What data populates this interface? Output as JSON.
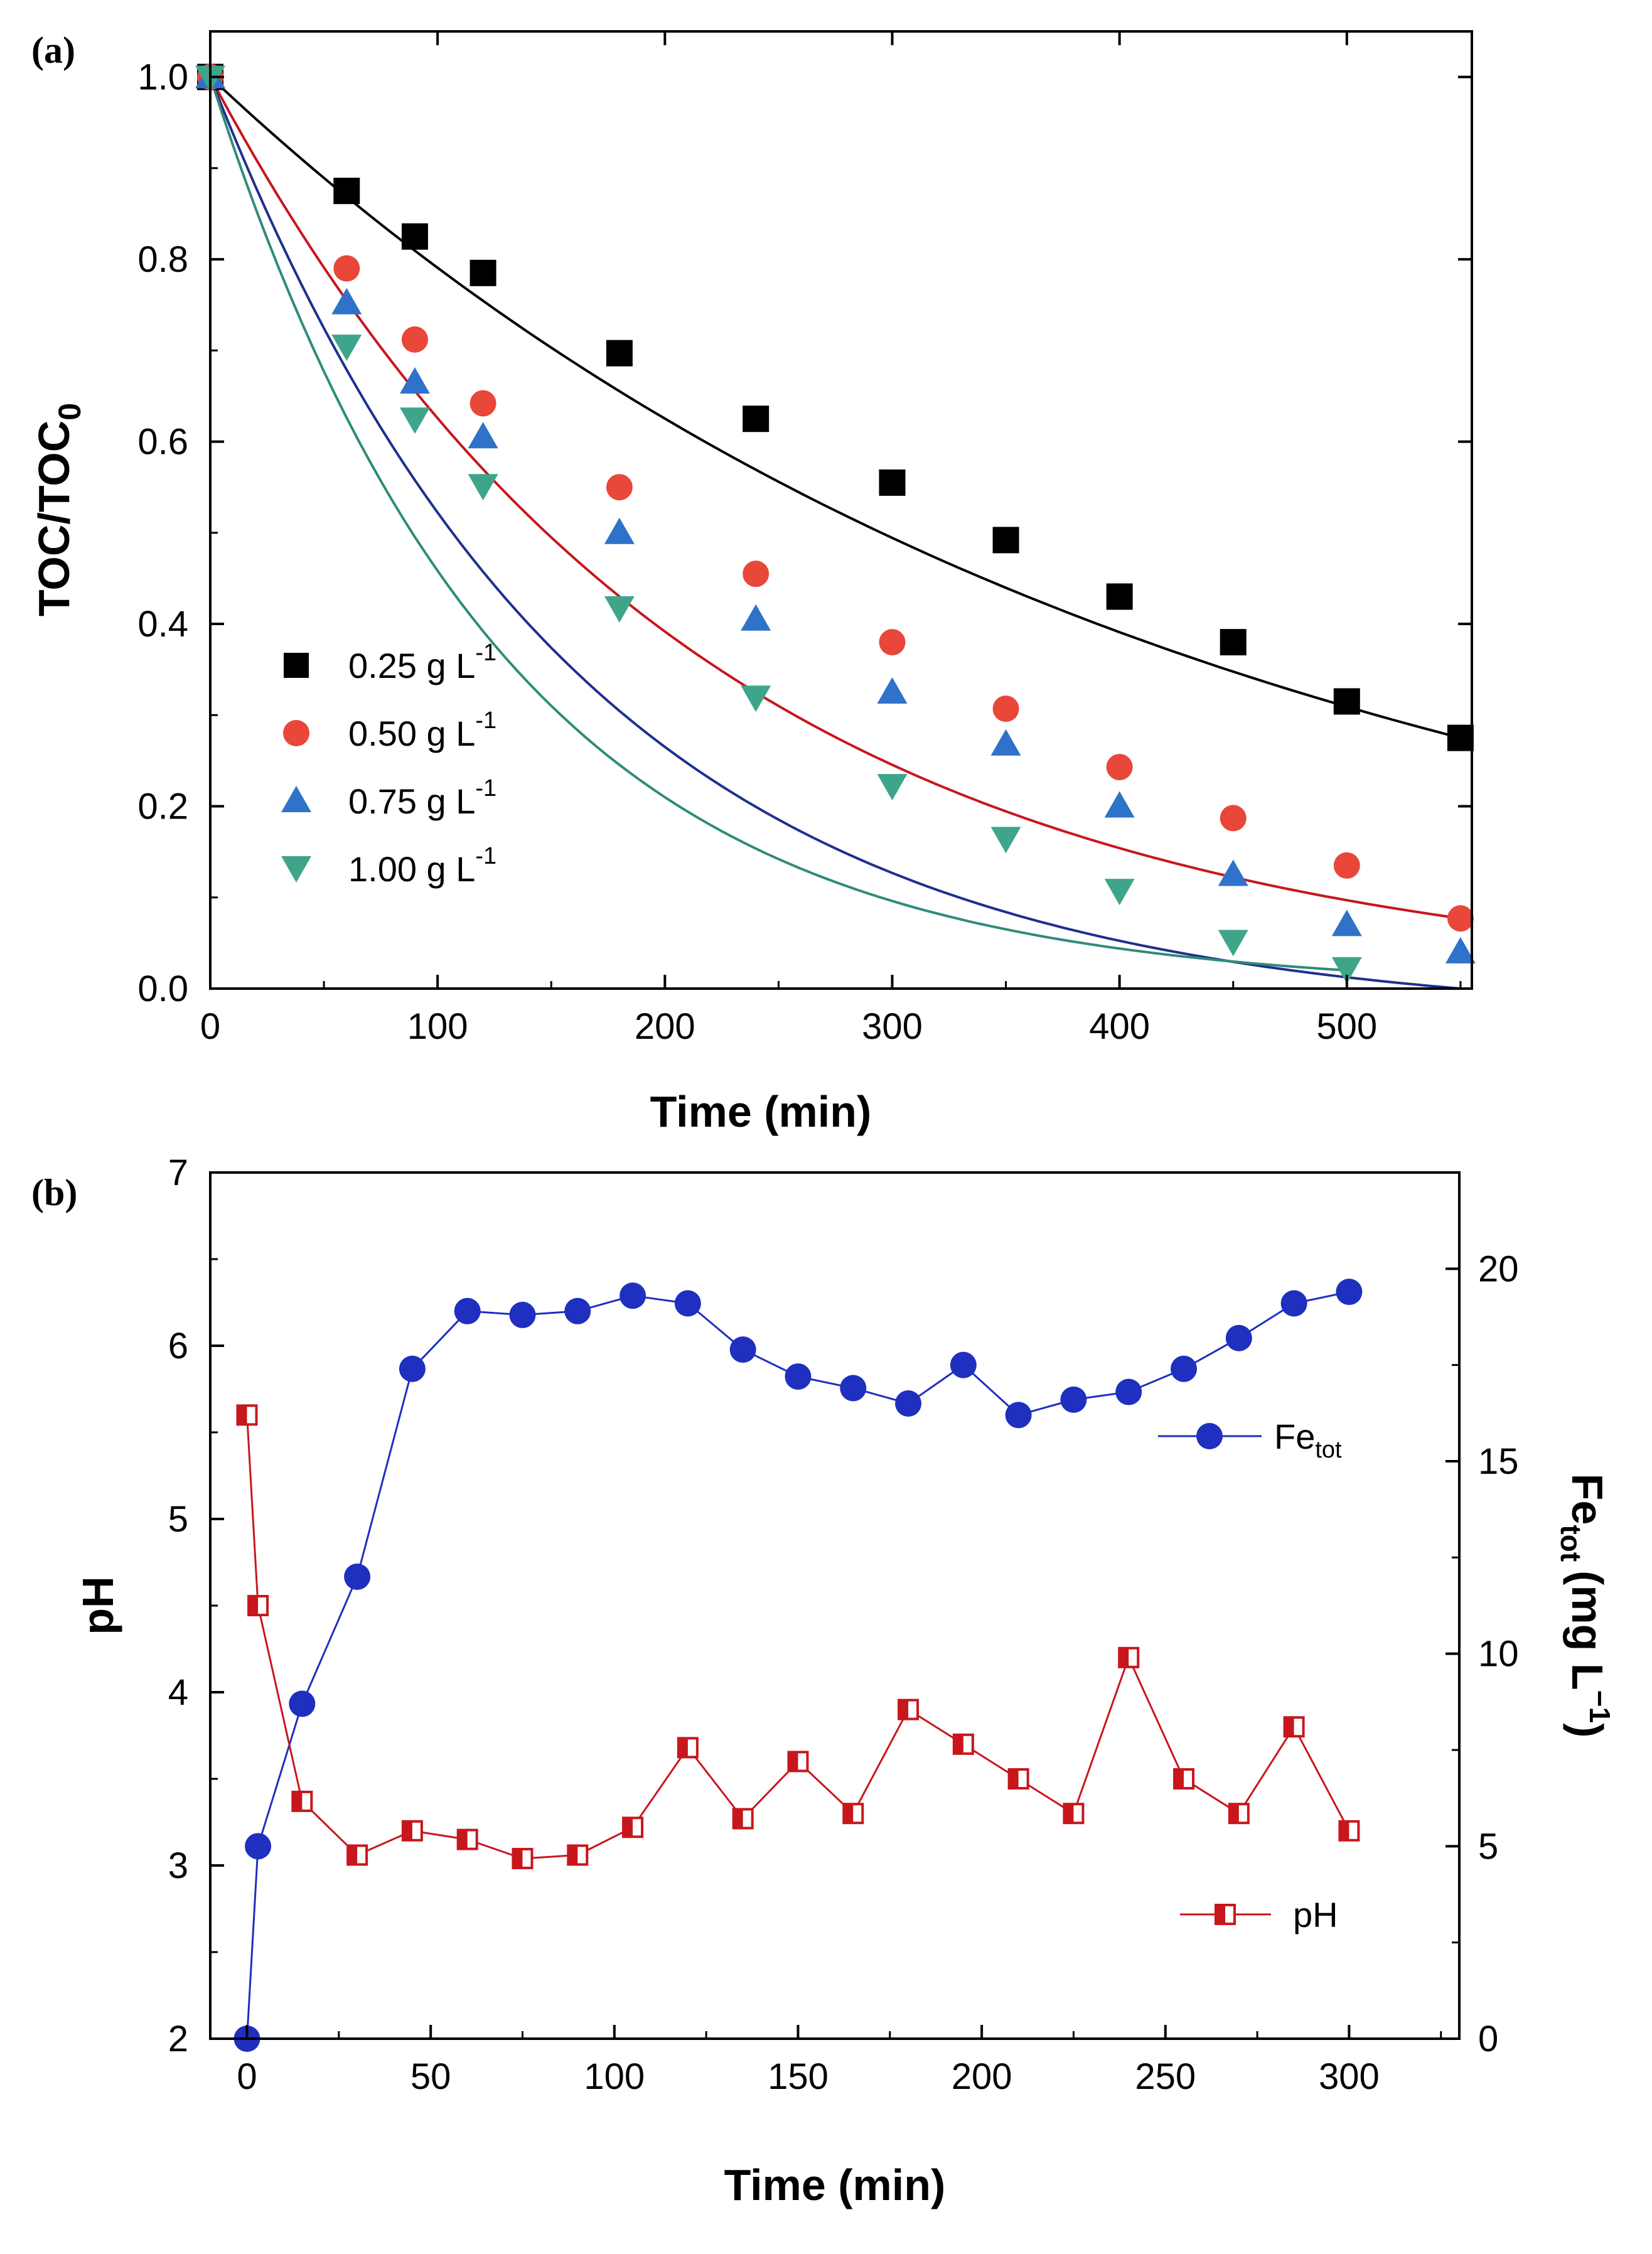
{
  "chart_data": [
    {
      "type": "scatter",
      "panel_label": "(a)",
      "xlabel": "Time (min)",
      "ylabel": {
        "main": "TOC/TOC",
        "sub": "0"
      },
      "xlim": [
        0,
        555
      ],
      "ylim": [
        0,
        1.05
      ],
      "xticks": [
        0,
        100,
        200,
        300,
        400,
        500
      ],
      "yticks": [
        0.0,
        0.2,
        0.4,
        0.6,
        0.8,
        1.0
      ],
      "xtick_labels": [
        "0",
        "100",
        "200",
        "300",
        "400",
        "500"
      ],
      "ytick_labels": [
        "0.0",
        "0.2",
        "0.4",
        "0.6",
        "0.8",
        "1.0"
      ],
      "legend_position": "left-middle",
      "series": [
        {
          "name": "0.25 g L",
          "unit_sup": "-1",
          "color": "#000000",
          "marker": "square",
          "x": [
            0,
            60,
            90,
            120,
            180,
            240,
            300,
            350,
            400,
            450,
            500,
            550
          ],
          "values": [
            1.0,
            0.875,
            0.825,
            0.785,
            0.697,
            0.625,
            0.555,
            0.492,
            0.43,
            0.38,
            0.315,
            0.275
          ],
          "fit_rate": 0.00235,
          "fit_end": 550
        },
        {
          "name": "0.50 g L",
          "unit_sup": "-1",
          "color": "#e8473a",
          "marker": "circle",
          "x": [
            0,
            60,
            90,
            120,
            180,
            240,
            300,
            350,
            400,
            450,
            500,
            550
          ],
          "values": [
            1.0,
            0.79,
            0.712,
            0.642,
            0.55,
            0.455,
            0.38,
            0.307,
            0.243,
            0.187,
            0.135,
            0.077
          ],
          "fit_rate": 0.0047,
          "fit_end": 550
        },
        {
          "name": "0.75 g L",
          "unit_sup": "-1",
          "color": "#2f72c9",
          "marker": "triangle-up",
          "x": [
            0,
            60,
            90,
            120,
            180,
            240,
            300,
            350,
            400,
            450,
            500,
            550
          ],
          "values": [
            1.0,
            0.752,
            0.665,
            0.605,
            0.5,
            0.405,
            0.325,
            0.268,
            0.2,
            0.125,
            0.07,
            0.04
          ],
          "fit_rate": 0.0062,
          "fit_end": 550
        },
        {
          "name": "1.00 g L",
          "unit_sup": "-1",
          "color": "#3fa58a",
          "marker": "triangle-down",
          "x": [
            0,
            60,
            90,
            120,
            180,
            240,
            300,
            350,
            400,
            450,
            500
          ],
          "values": [
            1.0,
            0.705,
            0.625,
            0.552,
            0.418,
            0.32,
            0.223,
            0.165,
            0.108,
            0.052,
            0.022
          ],
          "fit_rate": 0.0078,
          "fit_end": 500
        }
      ]
    },
    {
      "type": "line",
      "panel_label": "(b)",
      "xlabel": "Time (min)",
      "ylabel_left": "pH",
      "ylabel_right": {
        "main": "Fe",
        "sub": "tot",
        "unit": "(mg L",
        "sup": "−1",
        "close": ")"
      },
      "xlim": [
        -10,
        330
      ],
      "ylim_left": [
        2,
        7
      ],
      "ylim_right": [
        0,
        22.5
      ],
      "xticks": [
        0,
        50,
        100,
        150,
        200,
        250,
        300
      ],
      "xtick_labels": [
        "0",
        "50",
        "100",
        "150",
        "200",
        "250",
        "300"
      ],
      "yticks_left": [
        2,
        3,
        4,
        5,
        6,
        7
      ],
      "ytick_labels_left": [
        "2",
        "3",
        "4",
        "5",
        "6",
        "7"
      ],
      "yticks_right": [
        0,
        5,
        10,
        15,
        20
      ],
      "ytick_labels_right": [
        "0",
        "5",
        "10",
        "15",
        "20"
      ],
      "series": [
        {
          "name": "Fe",
          "name_sub": "tot",
          "axis": "right",
          "color": "#1f2fbf",
          "marker": "circle",
          "legend_position": "upper-right",
          "x": [
            0,
            3,
            15,
            30,
            45,
            60,
            75,
            90,
            105,
            120,
            135,
            150,
            165,
            180,
            195,
            210,
            225,
            240,
            255,
            270,
            285,
            300
          ],
          "values": [
            0,
            5.0,
            8.7,
            12.0,
            17.4,
            18.9,
            18.8,
            18.9,
            19.3,
            19.1,
            17.9,
            17.2,
            16.9,
            16.5,
            17.5,
            16.2,
            16.6,
            16.8,
            17.4,
            18.2,
            19.1,
            19.4
          ]
        },
        {
          "name": "pH",
          "axis": "left",
          "color": "#c8161d",
          "marker": "half-square",
          "legend_position": "lower-right",
          "x": [
            0,
            3,
            15,
            30,
            45,
            60,
            75,
            90,
            105,
            120,
            135,
            150,
            165,
            180,
            195,
            210,
            225,
            240,
            255,
            270,
            285,
            300
          ],
          "values": [
            5.6,
            4.5,
            3.37,
            3.06,
            3.2,
            3.15,
            3.04,
            3.06,
            3.22,
            3.68,
            3.27,
            3.6,
            3.3,
            3.9,
            3.7,
            3.5,
            3.3,
            4.2,
            3.5,
            3.3,
            3.8,
            3.2
          ]
        }
      ]
    }
  ]
}
